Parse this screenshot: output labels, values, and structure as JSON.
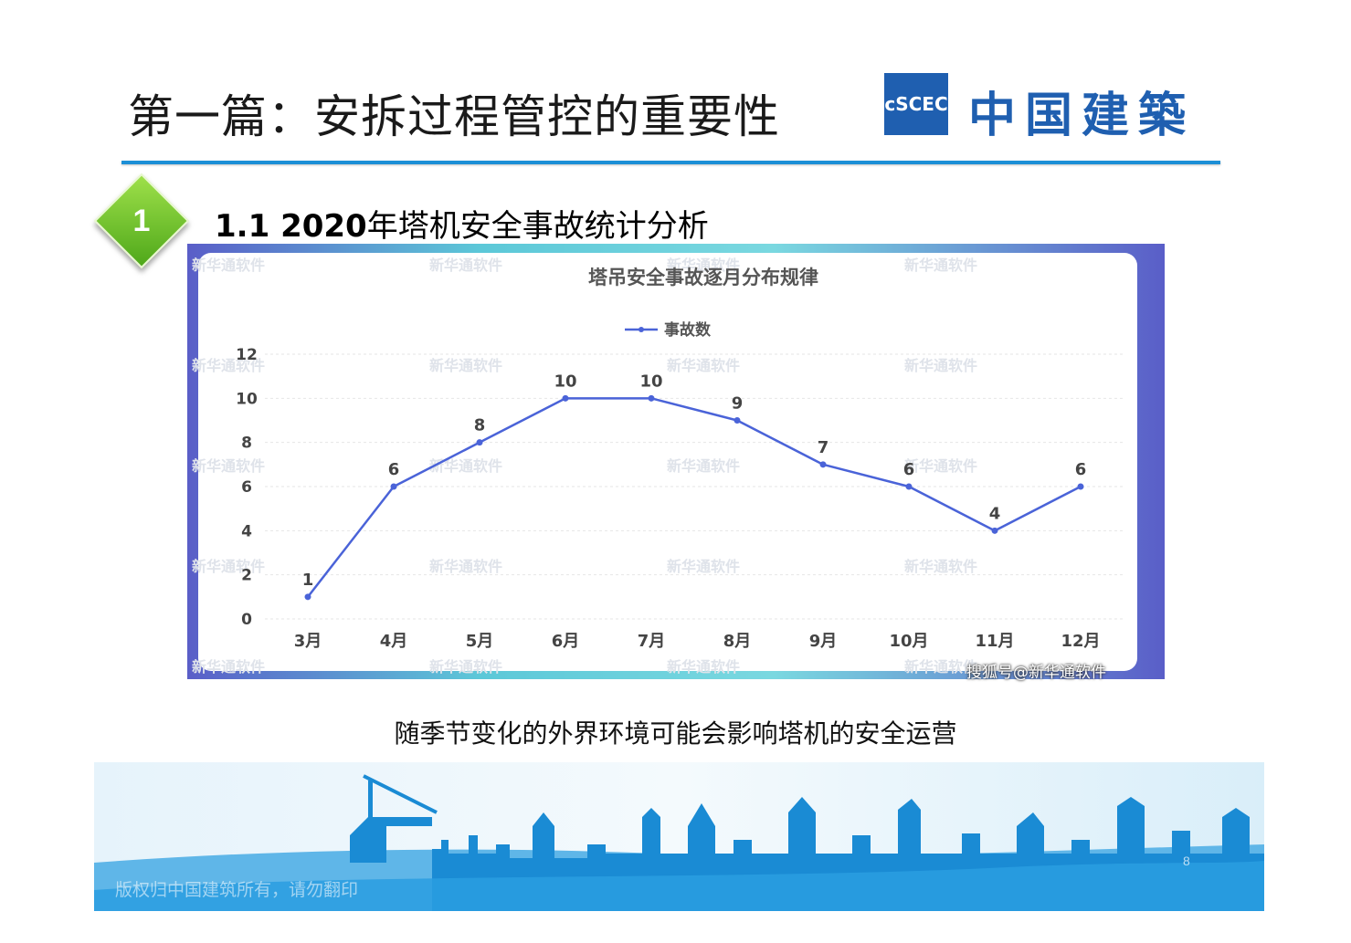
{
  "slide": {
    "title": "第一篇：安拆过程管控的重要性",
    "logo_mark": "cSCEC",
    "logo_text": "中国建築",
    "section_number": "1",
    "section_title_prefix": "1.1 2020",
    "section_title_rest": "年塔机安全事故统计分析",
    "caption": "随季节变化的外界环境可能会影响塔机的安全运营",
    "credit": "搜狐号@新华通软件",
    "copyright": "版权归中国建筑所有，请勿翻印",
    "page_number": "8"
  },
  "chart_data": {
    "type": "line",
    "title": "塔吊安全事故逐月分布规律",
    "categories": [
      "3月",
      "4月",
      "5月",
      "6月",
      "7月",
      "8月",
      "9月",
      "10月",
      "11月",
      "12月"
    ],
    "series": [
      {
        "name": "事故数",
        "values": [
          1,
          6,
          8,
          10,
          10,
          9,
          7,
          6,
          4,
          6
        ]
      }
    ],
    "ylim": [
      0,
      12
    ],
    "yticks": [
      0,
      2,
      4,
      6,
      8,
      10,
      12
    ],
    "legend": "top-center",
    "grid": true,
    "color": "#4a63d8",
    "watermark": "新华通软件"
  }
}
